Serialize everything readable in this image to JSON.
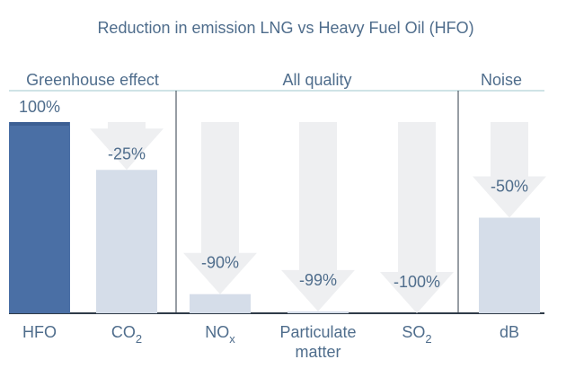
{
  "chart_data": {
    "type": "bar",
    "title": "Reduction in emission LNG vs Heavy Fuel Oil (HFO)",
    "ylim": [
      0,
      100
    ],
    "groups": [
      {
        "name": "Greenhouse effect",
        "categories": [
          0,
          1
        ]
      },
      {
        "name": "All quality",
        "categories": [
          2,
          3,
          4
        ]
      },
      {
        "name": "Noise",
        "categories": [
          5
        ]
      }
    ],
    "categories": [
      {
        "label": "HFO",
        "sub": "",
        "line2": ""
      },
      {
        "label": "CO",
        "sub": "2",
        "line2": ""
      },
      {
        "label": "NO",
        "sub": "x",
        "line2": ""
      },
      {
        "label": "Particulate",
        "sub": "",
        "line2": "matter"
      },
      {
        "label": "SO",
        "sub": "2",
        "line2": ""
      },
      {
        "label": "dB",
        "sub": "",
        "line2": ""
      }
    ],
    "values": [
      100,
      75,
      10,
      1,
      0,
      50
    ],
    "data_labels": [
      "100%",
      "-25%",
      "-90%",
      "-99%",
      "-100%",
      "-50%"
    ],
    "colors": {
      "baseline_bar": "#4a6fa5",
      "reduced_bar": "#d5dde9",
      "arrow": "#eeeff1",
      "group_line": "#cfe3e6",
      "axis": "#2f3b48",
      "text": "#4f6d8c"
    }
  }
}
